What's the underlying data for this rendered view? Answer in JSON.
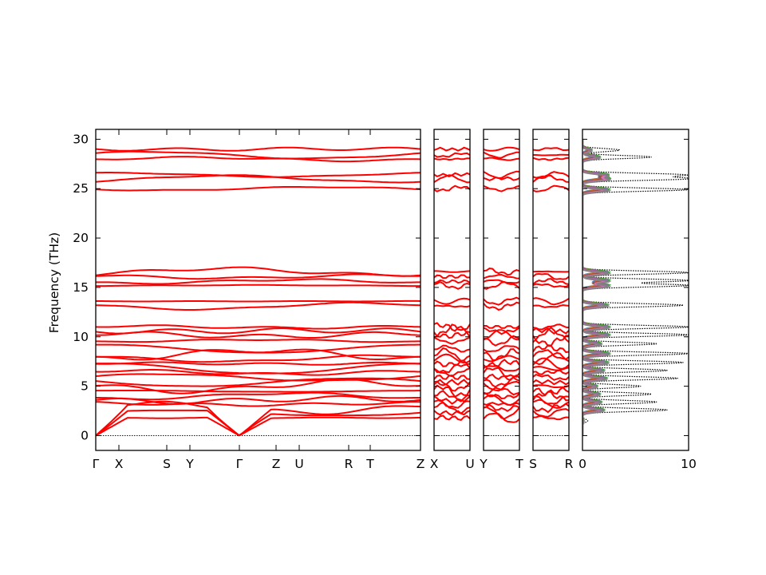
{
  "chart_data": {
    "type": "line",
    "ylabel": "Frequency (THz)",
    "ylim": [
      -1.5,
      31
    ],
    "yticks": [
      0,
      5,
      10,
      15,
      20,
      25,
      30
    ],
    "line_color": "#ff0000",
    "zero_line_color": "#0000cc",
    "band_panels": [
      {
        "labels": [
          "Γ",
          "X",
          "S",
          "Y",
          "Γ",
          "Z",
          "U",
          "R",
          "T",
          "Z"
        ]
      },
      {
        "labels": [
          "X",
          "U"
        ]
      },
      {
        "labels": [
          "Y",
          "T"
        ]
      },
      {
        "labels": [
          "S",
          "R"
        ]
      }
    ],
    "band_levels_thz": [
      1.8,
      2.3,
      2.8,
      3.2,
      3.6,
      4.0,
      4.5,
      5.0,
      5.4,
      5.9,
      6.4,
      6.8,
      7.3,
      7.8,
      8.2,
      8.8,
      9.6,
      10.2,
      10.6,
      11.0,
      13.1,
      13.6,
      15.2,
      15.6,
      16.1,
      16.6,
      25.0,
      26.0,
      26.4,
      28.0,
      28.4,
      29.0
    ],
    "dos": {
      "xlim": [
        0,
        10
      ],
      "xticks": [
        0,
        10
      ],
      "total_color": "#000000",
      "projection_colors": [
        "#1f77b4",
        "#ff7f0e",
        "#2ca02c",
        "#d62728",
        "#9467bd",
        "#8c564b",
        "#e377c2",
        "#7f7f7f"
      ],
      "total_peaks": [
        {
          "f": 1.5,
          "v": 0.5
        },
        {
          "f": 2.6,
          "v": 8.0
        },
        {
          "f": 3.4,
          "v": 7.0
        },
        {
          "f": 4.2,
          "v": 6.5
        },
        {
          "f": 5.0,
          "v": 5.5
        },
        {
          "f": 5.8,
          "v": 9.0
        },
        {
          "f": 6.6,
          "v": 8.0
        },
        {
          "f": 7.4,
          "v": 9.5
        },
        {
          "f": 8.3,
          "v": 10.0
        },
        {
          "f": 9.3,
          "v": 7.0
        },
        {
          "f": 10.2,
          "v": 10.0
        },
        {
          "f": 11.0,
          "v": 10.0
        },
        {
          "f": 13.2,
          "v": 9.5
        },
        {
          "f": 15.2,
          "v": 10.0
        },
        {
          "f": 15.7,
          "v": 10.0
        },
        {
          "f": 16.5,
          "v": 10.0
        },
        {
          "f": 24.9,
          "v": 10.0
        },
        {
          "f": 26.0,
          "v": 10.0
        },
        {
          "f": 26.4,
          "v": 9.5
        },
        {
          "f": 28.2,
          "v": 6.5
        },
        {
          "f": 28.9,
          "v": 3.5
        }
      ]
    }
  }
}
